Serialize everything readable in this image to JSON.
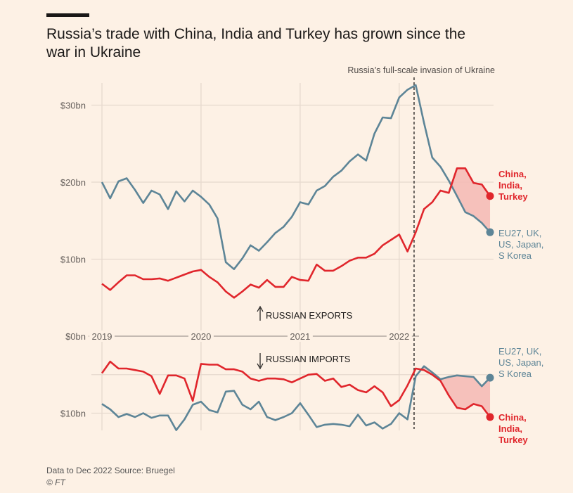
{
  "header": {
    "title": "Russia’s trade with China, India and Turkey has grown since the war in Ukraine"
  },
  "footer": {
    "note": "Data to Dec 2022   Source: Bruegel",
    "copyright": "© FT"
  },
  "colors": {
    "west": "#5d8597",
    "china_india_turkey": "#e0262c",
    "shade": "#f5b9b4",
    "background": "#fdf1e5"
  },
  "chart_data": {
    "type": "line",
    "title": "Russia’s trade with China, India and Turkey has grown since the war in Ukraine",
    "x_start": "2019-01",
    "x_end": "2022-12",
    "frequency": "monthly",
    "x_ticks": [
      "2019",
      "2020",
      "2021",
      "2022"
    ],
    "y_ticks_exports": [
      {
        "value": 0,
        "label": "$0bn"
      },
      {
        "value": 10,
        "label": "$10bn"
      },
      {
        "value": 20,
        "label": "$20bn"
      },
      {
        "value": 30,
        "label": "$30bn"
      }
    ],
    "y_ticks_imports": [
      {
        "value": 10,
        "label": "$10bn"
      }
    ],
    "grid": true,
    "annotation": {
      "label": "Russia’s full-scale invasion of Ukraine",
      "date": "2022-02-24"
    },
    "panel_labels": {
      "exports": "RUSSIAN EXPORTS",
      "imports": "RUSSIAN IMPORTS"
    },
    "exports": [
      {
        "name": "EU27, UK, US, Japan, S Korea",
        "label_lines": [
          "EU27, UK,",
          "US, Japan,",
          "S Korea"
        ],
        "color": "#5d8597",
        "values": [
          20.0,
          17.9,
          20.1,
          20.5,
          19.0,
          17.3,
          18.9,
          18.4,
          16.5,
          18.8,
          17.5,
          18.9,
          18.1,
          17.1,
          15.3,
          9.6,
          8.7,
          10.1,
          11.8,
          11.1,
          12.2,
          13.4,
          14.2,
          15.5,
          17.4,
          17.1,
          18.9,
          19.5,
          20.7,
          21.5,
          22.7,
          23.6,
          22.8,
          26.3,
          28.4,
          28.3,
          31.0,
          32.0,
          32.6,
          27.7,
          23.2,
          22.0,
          20.2,
          18.2,
          16.1,
          15.6,
          14.7,
          13.5
        ]
      },
      {
        "name": "China, India, Turkey",
        "label_lines": [
          "China,",
          "India,",
          "Turkey"
        ],
        "color": "#e0262c",
        "values": [
          6.8,
          6.0,
          7.0,
          7.9,
          7.9,
          7.4,
          7.4,
          7.5,
          7.2,
          7.6,
          8.0,
          8.4,
          8.6,
          7.7,
          7.0,
          5.8,
          5.0,
          5.8,
          6.7,
          6.3,
          7.3,
          6.4,
          6.4,
          7.7,
          7.3,
          7.2,
          9.3,
          8.5,
          8.5,
          9.1,
          9.8,
          10.2,
          10.2,
          10.7,
          11.8,
          12.5,
          13.2,
          11.0,
          13.5,
          16.5,
          17.4,
          18.9,
          18.6,
          21.8,
          21.8,
          19.9,
          19.7,
          18.2
        ]
      }
    ],
    "imports": [
      {
        "name": "EU27, UK, US, Japan, S Korea",
        "label_lines": [
          "EU27, UK,",
          "US, Japan,",
          "S Korea"
        ],
        "color": "#5d8597",
        "values": [
          8.8,
          9.5,
          10.5,
          10.1,
          10.5,
          10.0,
          10.6,
          10.3,
          10.3,
          12.2,
          10.8,
          8.9,
          8.5,
          9.6,
          9.9,
          7.2,
          7.1,
          8.9,
          9.5,
          8.5,
          10.5,
          10.9,
          10.5,
          10.0,
          8.7,
          10.2,
          11.8,
          11.5,
          11.4,
          11.5,
          11.7,
          10.2,
          11.6,
          11.2,
          12.0,
          11.4,
          10.0,
          10.8,
          5.2,
          3.9,
          4.7,
          5.6,
          5.3,
          5.1,
          5.2,
          5.3,
          6.5,
          5.4
        ]
      },
      {
        "name": "China, India, Turkey",
        "label_lines": [
          "China,",
          "India,",
          "Turkey"
        ],
        "color": "#e0262c",
        "values": [
          4.8,
          3.3,
          4.2,
          4.2,
          4.4,
          4.6,
          5.2,
          7.5,
          5.1,
          5.1,
          5.5,
          8.4,
          3.6,
          3.7,
          3.7,
          4.3,
          4.3,
          4.6,
          5.5,
          5.8,
          5.5,
          5.5,
          5.6,
          6.0,
          5.5,
          5.0,
          4.9,
          5.8,
          5.5,
          6.6,
          6.3,
          7.0,
          7.3,
          6.5,
          7.3,
          9.1,
          8.3,
          6.4,
          4.2,
          4.4,
          5.0,
          5.8,
          7.7,
          9.3,
          9.5,
          8.8,
          9.1,
          10.5
        ]
      }
    ]
  }
}
